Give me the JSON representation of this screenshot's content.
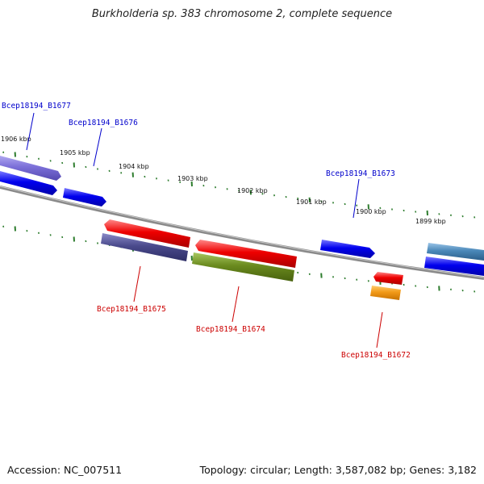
{
  "title": "Burkholderia sp. 383 chromosome 2, complete sequence",
  "accession": "Accession: NC_007511",
  "stats": "Topology: circular; Length: 3,587,082 bp; Genes: 3,182",
  "tick_labels": [
    "1906 kbp",
    "1905 kbp",
    "1904 kbp",
    "1903 kbp",
    "1902 kbp",
    "1901 kbp",
    "1900 kbp",
    "1899 kbp"
  ],
  "gene_labels": [
    {
      "name": "Bcep18194_B1677",
      "color": "#0000cc"
    },
    {
      "name": "Bcep18194_B1676",
      "color": "#0000cc"
    },
    {
      "name": "Bcep18194_B1673",
      "color": "#0000cc"
    },
    {
      "name": "Bcep18194_B1675",
      "color": "#cc0000"
    },
    {
      "name": "Bcep18194_B1674",
      "color": "#cc0000"
    },
    {
      "name": "Bcep18194_B1672",
      "color": "#cc0000"
    }
  ],
  "colors": {
    "backbone": "#777777",
    "ticks": "#2e7d2e",
    "forward_strand": "#0000ee",
    "reverse_strand": "#ee0000",
    "purple": "#7b6fd8",
    "slate": "#4a4a8c",
    "olive": "#6a8a1e",
    "orange": "#f29a18",
    "steel_blue": "#4a88b8"
  }
}
